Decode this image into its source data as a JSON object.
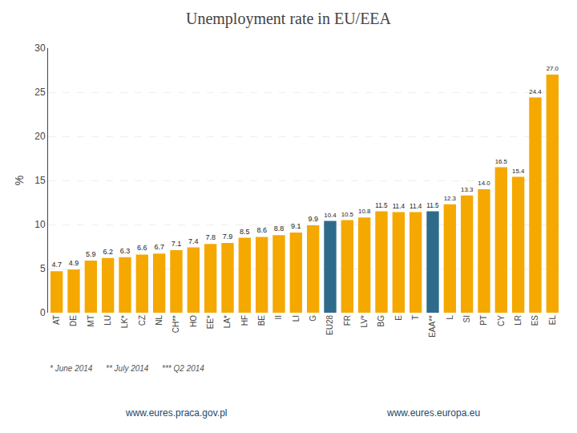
{
  "chart_data": {
    "type": "bar",
    "title": "Unemployment rate in EU/EEA",
    "ylabel": "%",
    "categories": [
      "AT",
      "DE",
      "MT",
      "LU",
      "LK*",
      "CZ",
      "NL",
      "CH**",
      "HO",
      "EE*",
      "LA*",
      "HF",
      "BE",
      "II",
      "LI",
      "G",
      "EU28",
      "FR",
      "LV*",
      "BG",
      "E",
      "T",
      "EAA**",
      "L",
      "SI",
      "PT",
      "CY",
      "LR",
      "ES",
      "EL"
    ],
    "values": [
      4.7,
      4.9,
      5.9,
      6.2,
      6.3,
      6.6,
      6.7,
      7.1,
      7.4,
      7.8,
      7.9,
      8.5,
      8.6,
      8.8,
      9.1,
      9.9,
      10.4,
      10.5,
      10.8,
      11.5,
      11.4,
      11.4,
      11.5,
      12.3,
      13.3,
      14.0,
      16.5,
      15.4,
      24.4,
      27.0
    ],
    "value_labels": [
      "4.7",
      "4.9",
      "5.9",
      "6.2",
      "6.3",
      "6.6",
      "6.7",
      "7.1",
      "7.4",
      "7.8",
      "7.9",
      "8.5",
      "8.6",
      "8.8",
      "9.1",
      "9.9",
      "10.4",
      "10.5",
      "10.8",
      "11.5",
      "11.4",
      "11.4",
      "11.5",
      "12.3",
      "13.3",
      "14.0",
      "16.5",
      "15.4",
      "24.4",
      "27.0"
    ],
    "colors": [
      "#F5A800",
      "#F5A800",
      "#F5A800",
      "#F5A800",
      "#F5A800",
      "#F5A800",
      "#F5A800",
      "#F5A800",
      "#F5A800",
      "#F5A800",
      "#F5A800",
      "#F5A800",
      "#F5A800",
      "#F5A800",
      "#F5A800",
      "#F5A800",
      "#2E6B8A",
      "#F5A800",
      "#F5A800",
      "#F5A800",
      "#F5A800",
      "#F5A800",
      "#2E6B8A",
      "#F5A800",
      "#F5A800",
      "#F5A800",
      "#F5A800",
      "#F5A800",
      "#F5A800",
      "#F5A800"
    ],
    "ylim": [
      0,
      30
    ],
    "yticks": [
      0,
      5,
      10,
      15,
      20,
      25,
      30
    ],
    "grid": true,
    "data_labels": true,
    "annotations": [
      "* June 2014      ** July 2014      *** Q2 2014",
      "www.eures.praca.gov.pl",
      "www.eures.europa.eu"
    ]
  }
}
